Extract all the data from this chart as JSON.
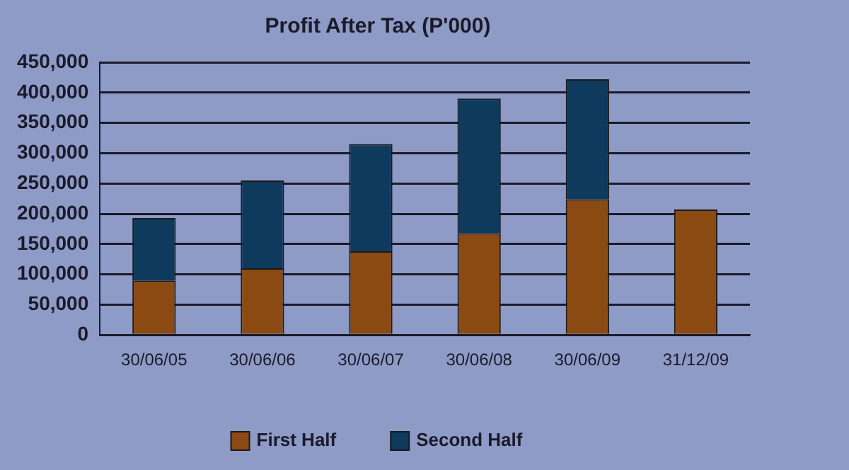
{
  "chart_data": {
    "type": "bar",
    "title": "Profit After Tax (P'000)",
    "stacked": true,
    "categories": [
      "30/06/05",
      "30/06/06",
      "30/06/07",
      "30/06/08",
      "30/06/09",
      "31/12/09"
    ],
    "series": [
      {
        "name": "First Half",
        "color": "#8a4a12",
        "values": [
          90000,
          110000,
          138000,
          168000,
          224000,
          207000
        ]
      },
      {
        "name": "Second Half",
        "color": "#0e3a5e",
        "values": [
          103000,
          145000,
          177000,
          222000,
          198000,
          null
        ]
      }
    ],
    "ylim": [
      0,
      450000
    ],
    "yticks": [
      0,
      {
        "value": 50000,
        "label": "50,000"
      },
      {
        "value": 100000,
        "label": "100,000"
      },
      {
        "value": 150000,
        "label": "150,000"
      },
      {
        "value": 200000,
        "label": "200,000"
      },
      {
        "value": 250000,
        "label": "250,000"
      },
      {
        "value": 300000,
        "label": "300,000"
      },
      {
        "value": 350000,
        "label": "350,000"
      },
      {
        "value": 400000,
        "label": "400,000"
      },
      {
        "value": 450000,
        "label": "450,000"
      }
    ],
    "grid": "y",
    "legend": "bottom"
  }
}
